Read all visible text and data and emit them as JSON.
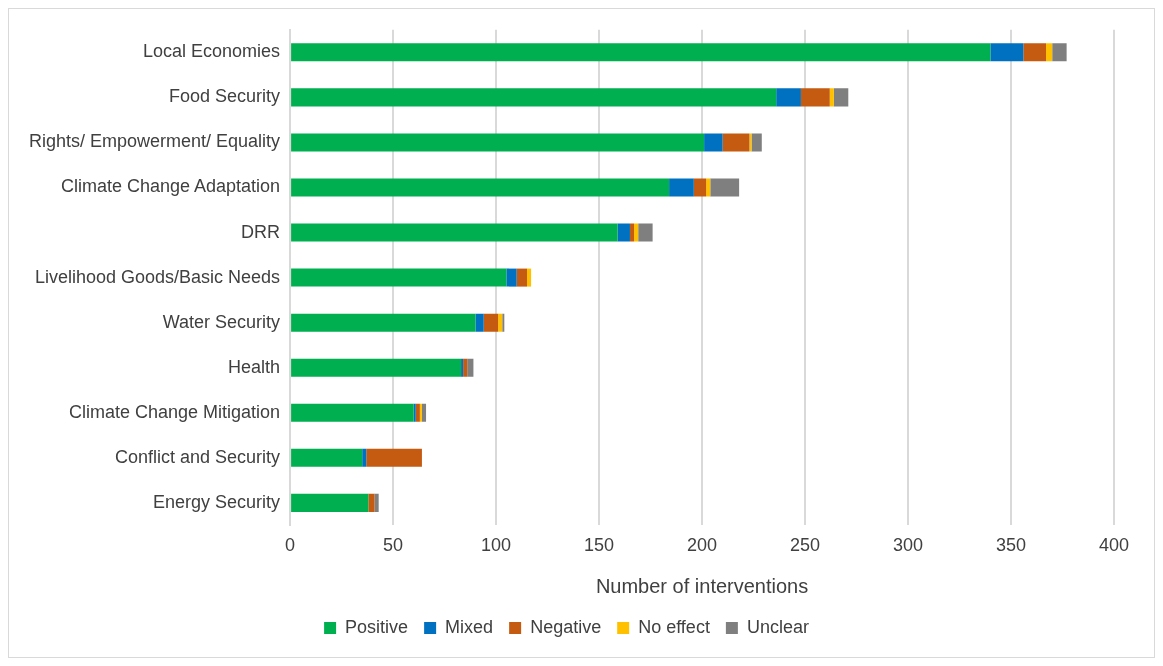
{
  "chart_data": {
    "type": "bar",
    "orientation": "horizontal",
    "stacked": true,
    "xlabel": "Number of interventions",
    "categories": [
      "Local Economies",
      "Food Security",
      "Rights/ Empowerment/ Equality",
      "Climate Change Adaptation",
      "DRR",
      "Livelihood Goods/Basic Needs",
      "Water Security",
      "Health",
      "Climate Change Mitigation",
      "Conflict and Security",
      "Energy Security"
    ],
    "series": [
      {
        "name": "Positive",
        "color": "#00b050",
        "values": [
          340,
          236,
          201,
          184,
          159,
          105,
          90,
          83,
          60,
          35,
          38
        ]
      },
      {
        "name": "Mixed",
        "color": "#0070c0",
        "values": [
          16,
          12,
          9,
          12,
          6,
          5,
          4,
          1,
          1,
          2,
          0
        ]
      },
      {
        "name": "Negative",
        "color": "#c55a11",
        "values": [
          11,
          14,
          13,
          6,
          2,
          5,
          7,
          2,
          2,
          27,
          3
        ]
      },
      {
        "name": "No effect",
        "color": "#ffc000",
        "values": [
          3,
          2,
          1,
          2,
          2,
          2,
          2,
          0,
          1,
          0,
          0
        ]
      },
      {
        "name": "Unclear",
        "color": "#7f7f7f",
        "values": [
          7,
          7,
          5,
          14,
          7,
          0,
          1,
          3,
          2,
          0,
          2
        ]
      }
    ],
    "xlim": [
      0,
      400
    ],
    "xticks": [
      0,
      50,
      100,
      150,
      200,
      250,
      300,
      350,
      400
    ],
    "grid": "x",
    "legend": "bottom"
  }
}
